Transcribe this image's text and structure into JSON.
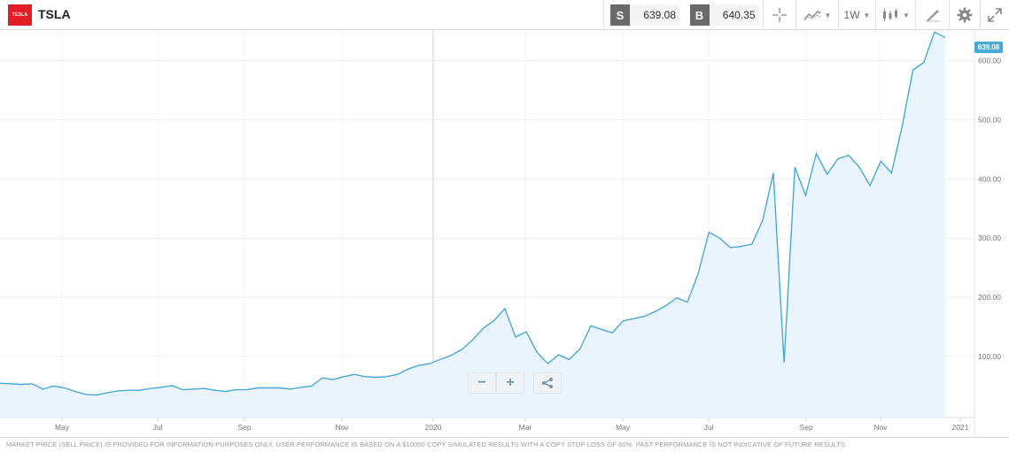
{
  "header": {
    "logo_text": "TESLA",
    "ticker": "TSLA",
    "sell_label": "S",
    "sell_price": "639.08",
    "buy_label": "B",
    "buy_price": "640.35",
    "interval": "1W"
  },
  "footer": {
    "disclaimer": "MARKET PRICE (SELL PRICE) IS PROVIDED FOR INFORMATION PURPOSES ONLY. USER PERFORMANCE IS BASED ON A $10000 COPY SIMULATED RESULTS WITH A COPY STOP LOSS OF 60%. PAST PERFORMANCE IS NOT INDICATIVE OF FUTURE RESULTS."
  },
  "controls": {
    "zoom_out": "−",
    "zoom_in": "+"
  },
  "colors": {
    "line": "#4aa8d8",
    "fill": "#e9f4fc",
    "grid": "#eeeeee",
    "badge": "#4aa8d8",
    "logo": "#e41e26"
  },
  "chart_data": {
    "type": "area",
    "x_labels": [
      "May",
      "Jul",
      "Sep",
      "Nov",
      "2020",
      "Mar",
      "May",
      "Jul",
      "Sep",
      "Nov",
      "2021"
    ],
    "ylim": [
      0,
      650
    ],
    "y_ticks": [
      100,
      200,
      300,
      400,
      500,
      600
    ],
    "y_tick_labels": [
      "100.00",
      "200.00",
      "300.00",
      "400.00",
      "500.00",
      "600.00"
    ],
    "last_value_label": "639.08",
    "series": [
      {
        "values": [
          55,
          54,
          53,
          54,
          45,
          50,
          47,
          41,
          36,
          35,
          39,
          42,
          43,
          43,
          46,
          48,
          51,
          44,
          45,
          46,
          43,
          41,
          44,
          44,
          47,
          47,
          47,
          45,
          48,
          50,
          64,
          61,
          66,
          70,
          66,
          65,
          66,
          70,
          79,
          85,
          88,
          95,
          102,
          112,
          128,
          148,
          161,
          181,
          133,
          142,
          107,
          88,
          103,
          95,
          113,
          152,
          146,
          140,
          160,
          164,
          168,
          176,
          186,
          199,
          192,
          240,
          310,
          300,
          284,
          286,
          290,
          330,
          410,
          90,
          420,
          372,
          443,
          408,
          434,
          440,
          420,
          389,
          430,
          410,
          490,
          584,
          597,
          648,
          639
        ],
        "grid": "on"
      }
    ]
  }
}
